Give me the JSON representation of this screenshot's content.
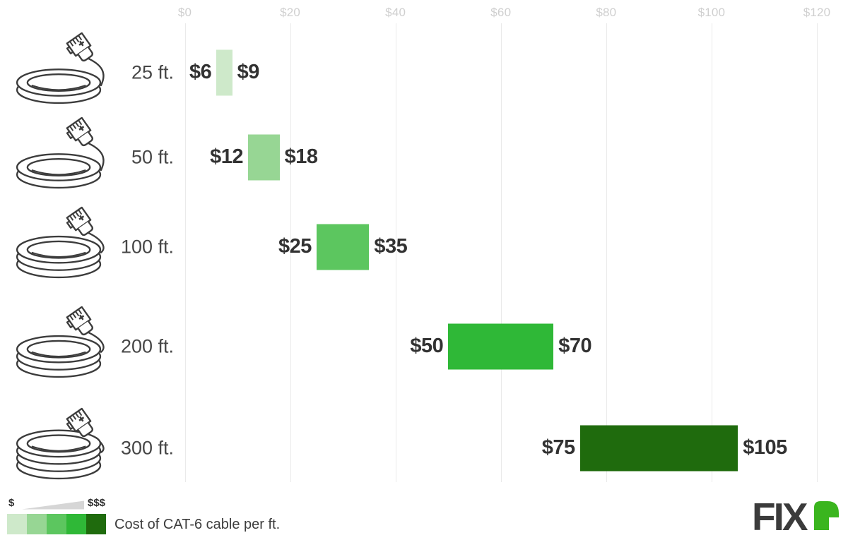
{
  "chart_data": {
    "type": "bar",
    "subtype": "horizontal-range-bars",
    "title": "Cost of CAT-6 cable per ft.",
    "xlim": [
      0,
      120
    ],
    "grid": true,
    "axis_ticks": [
      {
        "value": 0,
        "label": "$0"
      },
      {
        "value": 20,
        "label": "$20"
      },
      {
        "value": 40,
        "label": "$40"
      },
      {
        "value": 60,
        "label": "$60"
      },
      {
        "value": 80,
        "label": "$80"
      },
      {
        "value": 100,
        "label": "$100"
      },
      {
        "value": 120,
        "label": "$120"
      }
    ],
    "rows": [
      {
        "label": "25 ft.",
        "min": 6,
        "max": 9,
        "min_label": "$6",
        "max_label": "$9",
        "color": "#cee9ca",
        "icon": "cable-coil-icon",
        "coils": 2
      },
      {
        "label": "50 ft.",
        "min": 12,
        "max": 18,
        "min_label": "$12",
        "max_label": "$18",
        "color": "#97d694",
        "icon": "cable-coil-icon",
        "coils": 2
      },
      {
        "label": "100 ft.",
        "min": 25,
        "max": 35,
        "min_label": "$25",
        "max_label": "$35",
        "color": "#5cc65f",
        "icon": "cable-coil-icon",
        "coils": 3
      },
      {
        "label": "200 ft.",
        "min": 50,
        "max": 70,
        "min_label": "$50",
        "max_label": "$70",
        "color": "#2fb837",
        "icon": "cable-coil-icon",
        "coils": 3
      },
      {
        "label": "300 ft.",
        "min": 75,
        "max": 105,
        "min_label": "$75",
        "max_label": "$105",
        "color": "#1f6b0d",
        "icon": "cable-coil-icon",
        "coils": 4
      }
    ],
    "legend": {
      "low_label": "$",
      "high_label": "$$$",
      "caption": "Cost of CAT-6 cable per ft.",
      "palette": [
        "#cee9ca",
        "#97d694",
        "#5cc65f",
        "#2fb837",
        "#1f6b0d"
      ],
      "wedge_color": "#d6d6d6",
      "position": "bottom-left"
    }
  },
  "branding": {
    "logo_text": "FIX",
    "logo_accent_letter": "r",
    "logo_text_color": "#3b3b3b",
    "logo_accent_color": "#3ab51e"
  }
}
